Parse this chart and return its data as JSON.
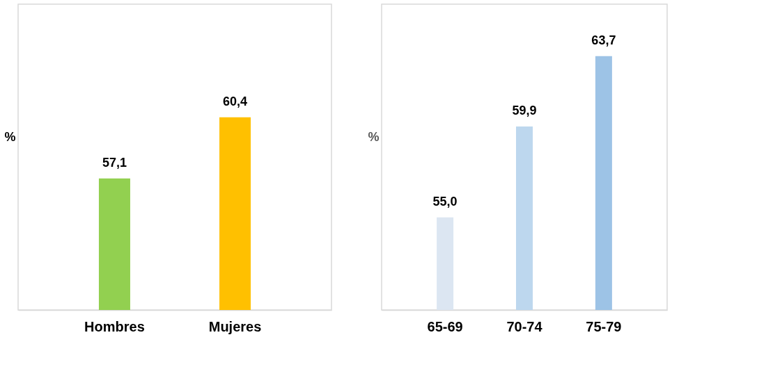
{
  "chart_data": [
    {
      "type": "bar",
      "ylabel": "%",
      "categories": [
        "Hombres",
        "Mujeres"
      ],
      "values": [
        57.1,
        60.4
      ],
      "colors": [
        "#92d050",
        "#ffc000"
      ],
      "value_labels": [
        "57,1",
        "60,4"
      ],
      "ylim": [
        50,
        66.5
      ],
      "tick_labels": "x",
      "grid": false
    },
    {
      "type": "bar",
      "ylabel": "%",
      "categories": [
        "65-69",
        "70-74",
        "75-79"
      ],
      "values": [
        55.0,
        59.9,
        63.7
      ],
      "colors": [
        "#dce6f2",
        "#bdd7ee",
        "#9dc3e6"
      ],
      "value_labels": [
        "55,0",
        "59,9",
        "63,7"
      ],
      "ylim": [
        50,
        66.5
      ],
      "tick_labels": "x",
      "grid": false
    }
  ]
}
